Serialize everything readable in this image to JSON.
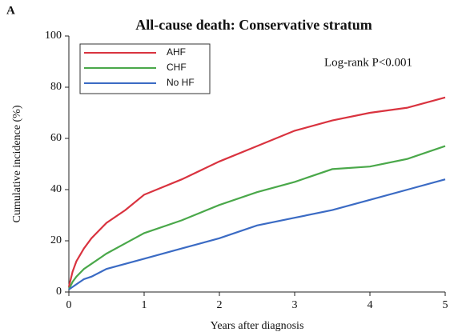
{
  "panel_label": "A",
  "chart_data": {
    "type": "line",
    "title": "All-cause death: Conservative stratum",
    "annotation": "Log-rank P<0.001",
    "x_label": "Years after diagnosis",
    "y_label": "Cumulative incidence (%)",
    "x": [
      0,
      0.05,
      0.1,
      0.2,
      0.3,
      0.5,
      0.75,
      1,
      1.5,
      2,
      2.5,
      3,
      3.5,
      4,
      4.5,
      5
    ],
    "series": [
      {
        "name": "AHF",
        "color": "#d9333f",
        "values": [
          2,
          8,
          12,
          17,
          21,
          27,
          32,
          38,
          44,
          51,
          57,
          63,
          67,
          70,
          72,
          76
        ]
      },
      {
        "name": "CHF",
        "color": "#4aa84a",
        "values": [
          1,
          4,
          6,
          9,
          11,
          15,
          19,
          23,
          28,
          34,
          39,
          43,
          48,
          49,
          52,
          57
        ]
      },
      {
        "name": "No HF",
        "color": "#3b6bc4",
        "values": [
          1,
          2,
          3,
          5,
          6,
          9,
          11,
          13,
          17,
          21,
          26,
          29,
          32,
          36,
          40,
          44
        ]
      }
    ],
    "xlim": [
      0,
      5
    ],
    "xticks": [
      0,
      1,
      2,
      3,
      4,
      5
    ],
    "ylim": [
      0,
      100
    ],
    "yticks": [
      0,
      20,
      40,
      60,
      80,
      100
    ],
    "legend": "upper left",
    "grid": false
  }
}
